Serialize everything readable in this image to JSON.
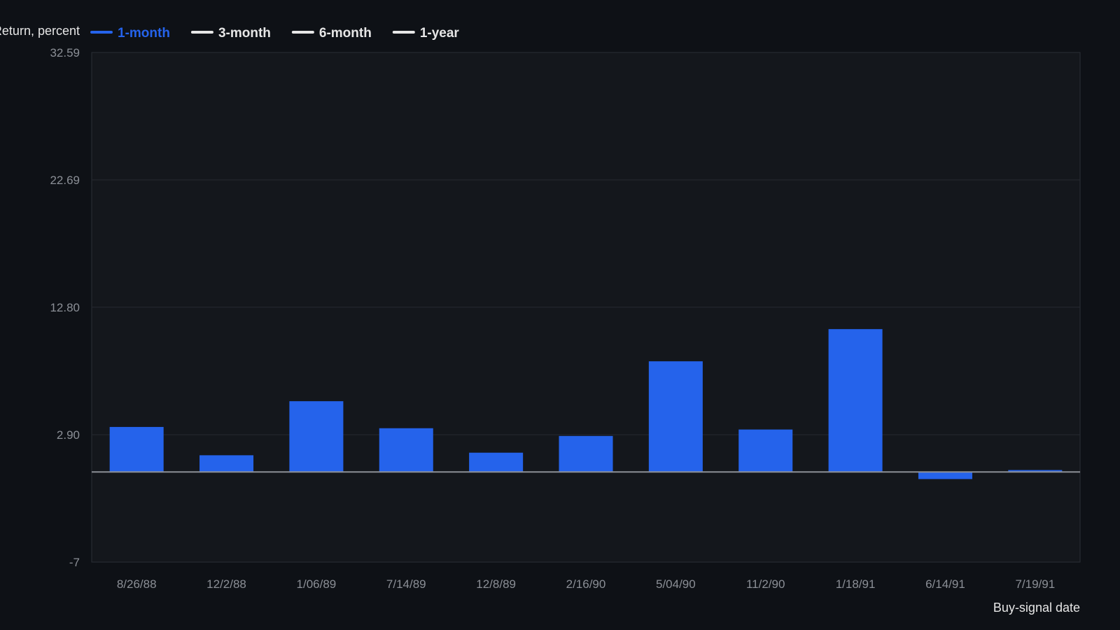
{
  "chart_data": {
    "type": "bar",
    "ylabel": "Return, percent",
    "xlabel": "Buy-signal date",
    "ylim": [
      -7,
      32.59
    ],
    "yticks": [
      "32.59",
      "22.69",
      "12.80",
      "2.90",
      "-7"
    ],
    "ytick_values": [
      32.59,
      22.69,
      12.8,
      2.9,
      -7
    ],
    "grid": true,
    "legend_position": "top-left",
    "legend": [
      {
        "name": "1-month",
        "color": "#2563eb",
        "active": true
      },
      {
        "name": "3-month",
        "color": "#e6e6e6",
        "active": false
      },
      {
        "name": "6-month",
        "color": "#e6e6e6",
        "active": false
      },
      {
        "name": "1-year",
        "color": "#e6e6e6",
        "active": false
      }
    ],
    "categories": [
      "8/26/88",
      "12/2/88",
      "1/06/89",
      "7/14/89",
      "12/8/89",
      "2/16/90",
      "5/04/90",
      "11/2/90",
      "1/18/91",
      "6/14/91",
      "7/19/91"
    ],
    "series": [
      {
        "name": "1-month",
        "color": "#2563eb",
        "values": [
          3.5,
          1.3,
          5.5,
          3.4,
          1.5,
          2.8,
          8.6,
          3.3,
          11.1,
          -0.55,
          0.15
        ]
      }
    ]
  }
}
